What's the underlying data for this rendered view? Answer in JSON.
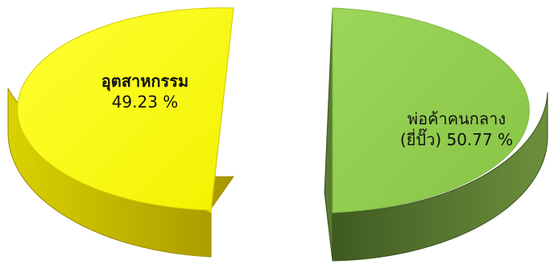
{
  "chart_data": {
    "type": "pie",
    "style": "3d-exploded",
    "slices": [
      {
        "name": "อุตสาหกรรม",
        "value": 49.23,
        "label_pct": "49.23 %",
        "color_top": "#ffff00",
        "color_side": "#c8b400"
      },
      {
        "name": "พ่อค้าคนกลาง",
        "name_line2": "(ยี่ปั๊ว) 50.77 %",
        "value": 50.77,
        "color_top": "#92d050",
        "color_side": "#4f6b2a"
      }
    ]
  }
}
